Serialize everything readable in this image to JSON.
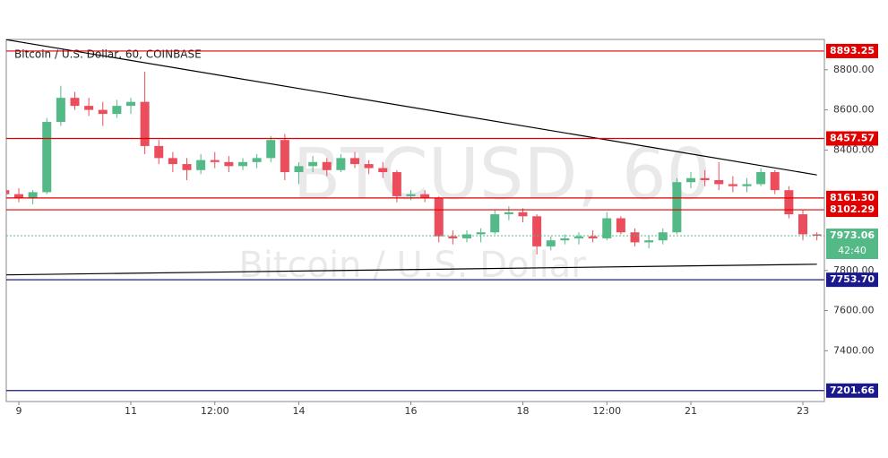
{
  "chart_data": {
    "type": "candlestick",
    "title": "Bitcoin / U.S. Dollar, 60, COINBASE",
    "watermark": "BTCUSD, 60",
    "watermark_subtitle": "Bitcoin / U.S. Dollar",
    "categories": [
      null,
      "9",
      null,
      null,
      null,
      null,
      null,
      null,
      null,
      "11",
      null,
      null,
      null,
      null,
      null,
      "12:00",
      null,
      null,
      null,
      null,
      null,
      "14",
      null,
      null,
      null,
      null,
      null,
      null,
      null,
      "16",
      null,
      null,
      null,
      null,
      null,
      null,
      null,
      "18",
      null,
      null,
      null,
      null,
      null,
      "12:00",
      null,
      null,
      null,
      null,
      null,
      "21",
      null,
      null,
      null,
      null,
      null,
      null,
      null,
      "23",
      null
    ],
    "open": [
      8200,
      8180,
      8160,
      8190,
      8540,
      8660,
      8620,
      8600,
      8580,
      8620,
      8640,
      8420,
      8360,
      8330,
      8300,
      8350,
      8340,
      8320,
      8340,
      8360,
      8450,
      8290,
      8320,
      8340,
      8300,
      8360,
      8330,
      8310,
      8290,
      8170,
      8180,
      8160,
      7970,
      7960,
      7980,
      7990,
      8080,
      8090,
      8070,
      7920,
      7950,
      7960,
      7970,
      7960,
      8060,
      7990,
      7940,
      7950,
      7990,
      8240,
      8260,
      8250,
      8230,
      8220,
      8230,
      8290,
      8200,
      8080,
      7980
    ],
    "high": [
      8230,
      8210,
      8200,
      8560,
      8720,
      8690,
      8660,
      8640,
      8650,
      8660,
      8790,
      8450,
      8390,
      8360,
      8380,
      8390,
      8370,
      8360,
      8380,
      8470,
      8480,
      8340,
      8370,
      8360,
      8380,
      8390,
      8350,
      8340,
      8300,
      8200,
      8200,
      8170,
      8000,
      8000,
      8010,
      8100,
      8120,
      8110,
      8080,
      7970,
      7980,
      7990,
      8000,
      8090,
      8070,
      8010,
      7970,
      8010,
      8260,
      8290,
      8300,
      8340,
      8270,
      8260,
      8310,
      8300,
      8220,
      8100,
      7990
    ],
    "low": [
      8150,
      8140,
      8130,
      8180,
      8520,
      8600,
      8570,
      8520,
      8560,
      8580,
      8380,
      8330,
      8290,
      8250,
      8280,
      8310,
      8290,
      8300,
      8310,
      8340,
      8250,
      8230,
      8290,
      8270,
      8290,
      8310,
      8280,
      8260,
      8140,
      8150,
      8140,
      7940,
      7930,
      7940,
      7940,
      7980,
      8050,
      8040,
      7880,
      7900,
      7930,
      7930,
      7940,
      7950,
      7980,
      7920,
      7910,
      7930,
      7980,
      8210,
      8220,
      8200,
      8190,
      8190,
      8220,
      8180,
      8060,
      7950,
      7950
    ],
    "close": [
      8180,
      8160,
      8190,
      8540,
      8660,
      8620,
      8600,
      8580,
      8620,
      8640,
      8420,
      8360,
      8330,
      8300,
      8350,
      8340,
      8320,
      8340,
      8360,
      8450,
      8290,
      8320,
      8340,
      8300,
      8360,
      8330,
      8310,
      8290,
      8170,
      8180,
      8160,
      7970,
      7960,
      7980,
      7990,
      8080,
      8090,
      8070,
      7920,
      7950,
      7960,
      7970,
      7960,
      8060,
      7990,
      7940,
      7950,
      7990,
      8240,
      8260,
      8250,
      8230,
      8220,
      8230,
      8290,
      8200,
      8080,
      7980,
      7973.06
    ],
    "up_color": "#53b987",
    "down_color": "#eb4d5c",
    "ylim": [
      7147,
      8951
    ],
    "yticks": [
      {
        "value": 7400,
        "label": "7400.00"
      },
      {
        "value": 7600,
        "label": "7600.00"
      },
      {
        "value": 7800,
        "label": "7800.00"
      },
      {
        "value": 8400,
        "label": "8400.00"
      },
      {
        "value": 8600,
        "label": "8600.00"
      },
      {
        "value": 8800,
        "label": "8800.00"
      }
    ],
    "levels": [
      {
        "value": 8893.25,
        "label": "8893.25",
        "color": "#e00000"
      },
      {
        "value": 8457.57,
        "label": "8457.57",
        "color": "#e00000"
      },
      {
        "value": 8161.3,
        "label": "8161.30",
        "color": "#e00000"
      },
      {
        "value": 8102.29,
        "label": "8102.29",
        "color": "#e00000"
      },
      {
        "value": 7753.7,
        "label": "7753.70",
        "color": "#1a1a8c"
      },
      {
        "value": 7201.66,
        "label": "7201.66",
        "color": "#1a1a8c"
      }
    ],
    "trendlines": [
      {
        "values": [
          8951,
          8276
        ],
        "color": "#000000"
      },
      {
        "values": [
          7778,
          7831
        ],
        "color": "#000000"
      }
    ],
    "last_price": {
      "value": 7973.06,
      "label": "7973.06",
      "color": "#53b987"
    },
    "countdown": "42:40"
  }
}
